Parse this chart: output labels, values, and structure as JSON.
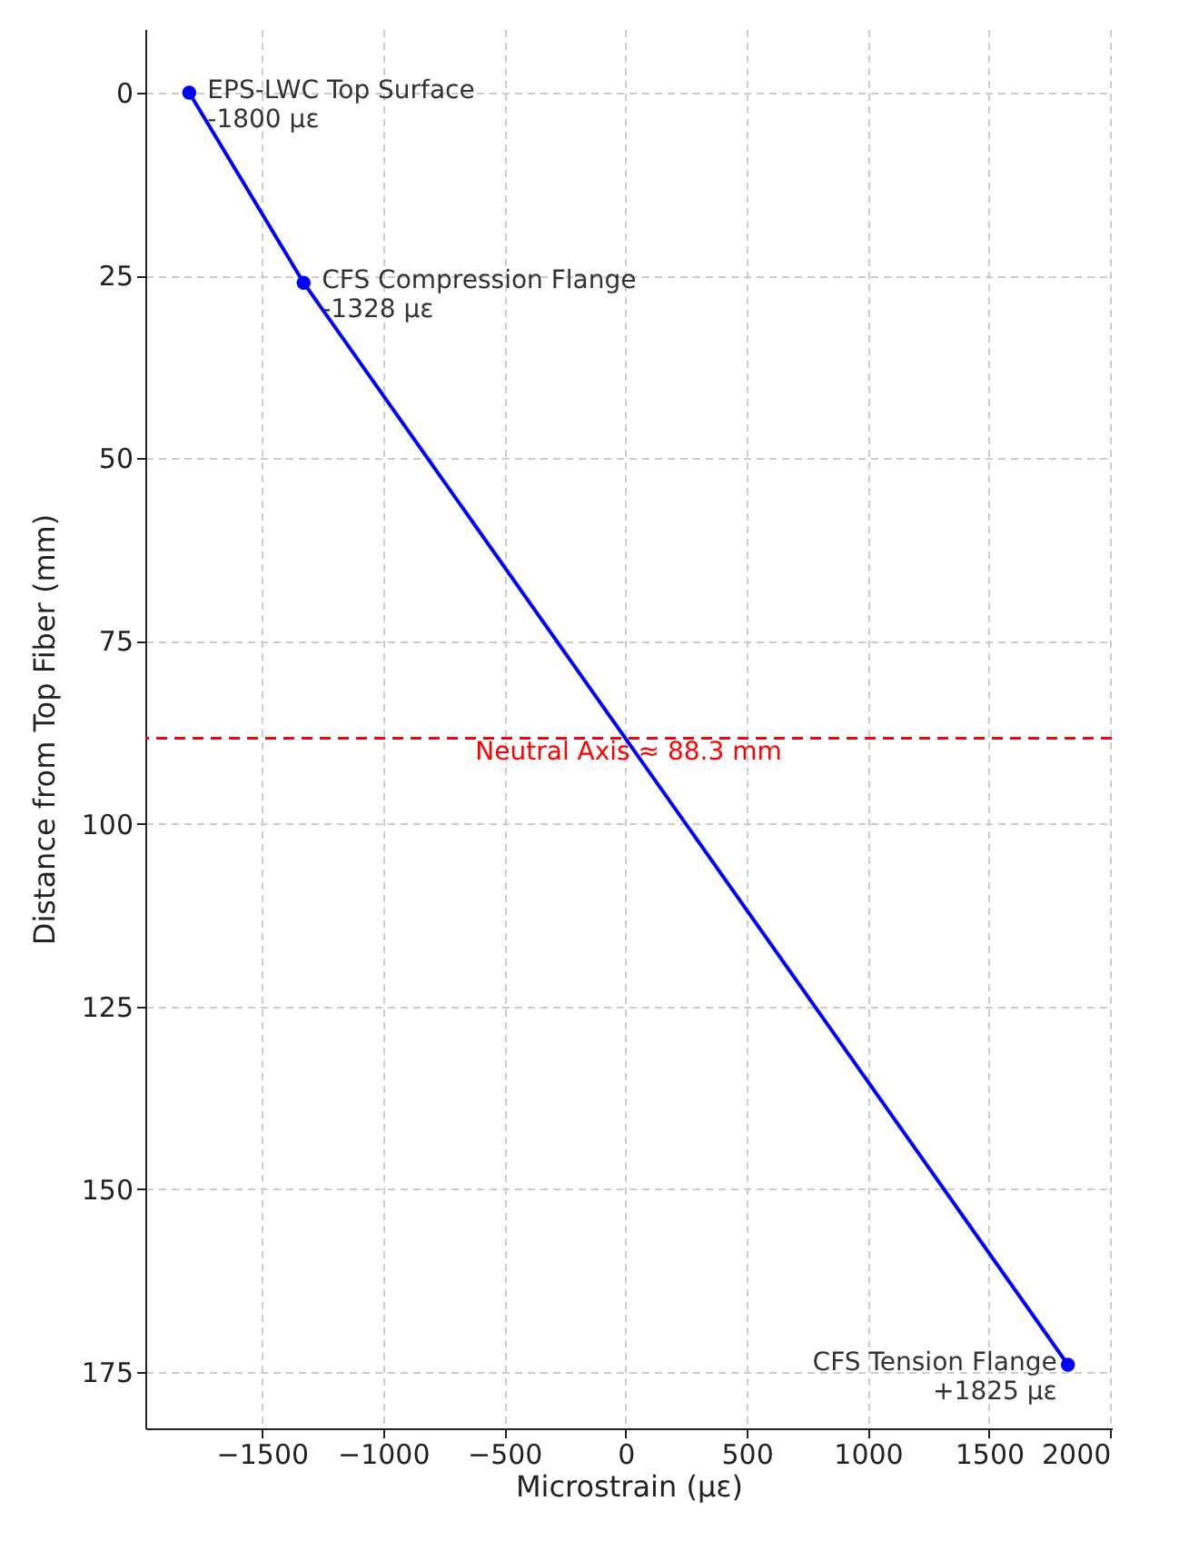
{
  "chart_data": {
    "type": "line",
    "xlabel": "Microstrain (με)",
    "ylabel": "Distance from Top Fiber (mm)",
    "x": [
      -1800,
      -1328,
      1825
    ],
    "series": [
      {
        "color": "#0000ff",
        "values": [
          0,
          26,
          174
        ]
      }
    ],
    "marker": "circle",
    "line_style": "solid",
    "grid": true,
    "xlim": [
      -1981,
      2006
    ],
    "ylim": [
      182.7,
      -8.7
    ],
    "xticks": [
      {
        "value": -1500,
        "label": "−1500"
      },
      {
        "value": -1000,
        "label": "−1000"
      },
      {
        "value": -500,
        "label": "−500"
      },
      0,
      500,
      1000,
      1500,
      2000
    ],
    "yticks": [
      0,
      25,
      50,
      75,
      100,
      125,
      150,
      175
    ],
    "ref_lines": [
      {
        "axis": "y",
        "value": 88.3,
        "label": "Neutral Axis ≈ 88.3 mm",
        "color": "#ff0000",
        "line_style": "dashed"
      }
    ],
    "annotations": [
      {
        "text": "EPS-LWC Top Surface\n-1800 με",
        "x": -1800,
        "y": 0
      },
      {
        "text": "CFS Compression Flange\n-1328 με",
        "x": -1328,
        "y": 26
      },
      {
        "text": "CFS Tension Flange\n+1825 με",
        "x": 1825,
        "y": 174
      }
    ]
  }
}
